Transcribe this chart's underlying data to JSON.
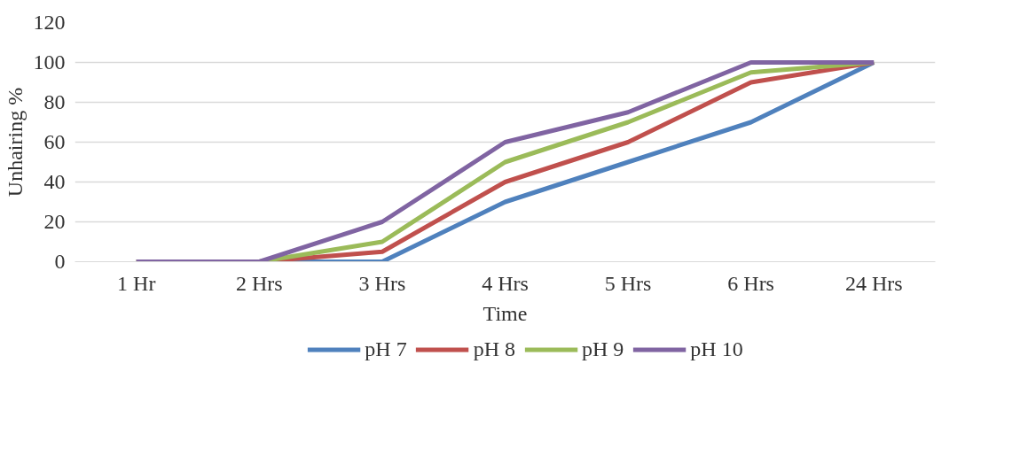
{
  "chart_data": {
    "type": "line",
    "xlabel": "Time",
    "ylabel": "Unhairing %",
    "categories": [
      "1 Hr",
      "2 Hrs",
      "3 Hrs",
      "4 Hrs",
      "5 Hrs",
      "6 Hrs",
      "24 Hrs"
    ],
    "series": [
      {
        "name": "pH 7",
        "color": "#4f81bd",
        "values": [
          0,
          0,
          0,
          30,
          50,
          70,
          100
        ]
      },
      {
        "name": "pH 8",
        "color": "#c0504d",
        "values": [
          0,
          0,
          5,
          40,
          60,
          90,
          100
        ]
      },
      {
        "name": "pH 9",
        "color": "#9bbb59",
        "values": [
          0,
          0,
          10,
          50,
          70,
          95,
          100
        ]
      },
      {
        "name": "pH 10",
        "color": "#8064a2",
        "values": [
          0,
          0,
          20,
          60,
          75,
          100,
          100
        ]
      }
    ],
    "ylim": [
      0,
      120
    ],
    "yticks": [
      0,
      20,
      40,
      60,
      80,
      100,
      120
    ],
    "grid": "y",
    "legend": "bottom",
    "marker": "none",
    "line_style": "solid"
  }
}
